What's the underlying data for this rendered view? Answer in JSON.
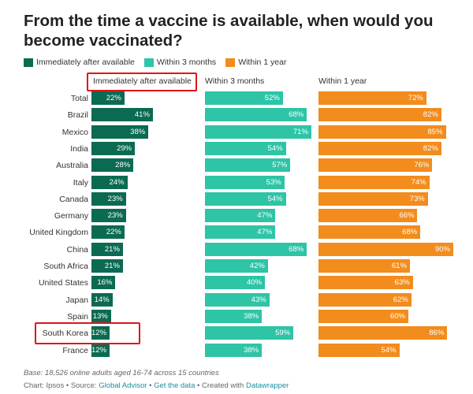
{
  "title": "From the time a vaccine is available, when would you become vaccinated?",
  "colors": {
    "immediate": "#0b6b52",
    "three_months": "#2ec4a6",
    "one_year": "#f28c1c",
    "highlight": "#e0151b"
  },
  "legend": [
    {
      "label": "Immediately after available",
      "color": "#0b6b52"
    },
    {
      "label": "Within 3 months",
      "color": "#2ec4a6"
    },
    {
      "label": "Within 1 year",
      "color": "#f28c1c"
    }
  ],
  "chart_data": {
    "type": "bar",
    "title": "From the time a vaccine is available, when would you become vaccinated?",
    "categories": [
      "Total",
      "Brazil",
      "Mexico",
      "India",
      "Australia",
      "Italy",
      "Canada",
      "Germany",
      "United Kingdom",
      "China",
      "South Africa",
      "United States",
      "Japan",
      "Spain",
      "South Korea",
      "France"
    ],
    "series": [
      {
        "name": "Immediately after available",
        "values": [
          22,
          41,
          38,
          29,
          28,
          24,
          23,
          23,
          22,
          21,
          21,
          16,
          14,
          13,
          12,
          12
        ]
      },
      {
        "name": "Within 3 months",
        "values": [
          52,
          68,
          71,
          54,
          57,
          53,
          54,
          47,
          47,
          68,
          42,
          40,
          43,
          38,
          59,
          38
        ]
      },
      {
        "name": "Within 1 year",
        "values": [
          72,
          82,
          85,
          82,
          76,
          74,
          73,
          66,
          68,
          90,
          61,
          63,
          62,
          60,
          86,
          54
        ]
      }
    ],
    "value_suffix": "%",
    "layout": "small-multiples, horizontal bars"
  },
  "highlights": [
    "Immediately after available",
    "South Korea"
  ],
  "footer": {
    "base": "Base: 18,526 online adults aged 16-74 across 15 countries",
    "credit_prefix": "Chart: Ipsos • Source: ",
    "source_link": "Global Advisor",
    "separator1": " • ",
    "data_link": "Get the data",
    "separator2": " • Created with ",
    "tool_link": "Datawrapper"
  }
}
